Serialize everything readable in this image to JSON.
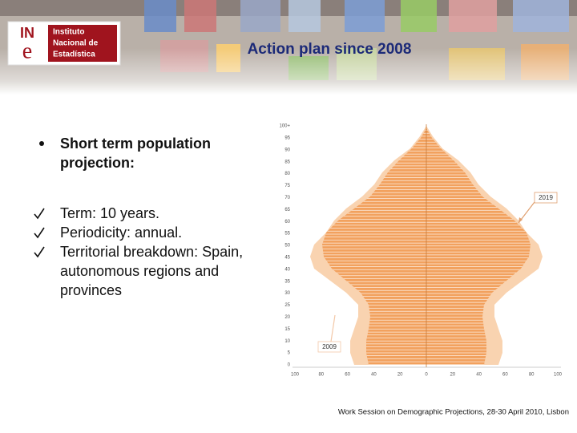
{
  "header": {
    "title": "Action plan since 2008",
    "logo": {
      "mark_top": "IN",
      "mark_bottom": "e",
      "lines": [
        "Instituto",
        "Nacional de",
        "Estadística"
      ]
    }
  },
  "bullet": {
    "lines": [
      "Short term population",
      "projection:"
    ]
  },
  "checks": [
    {
      "lines": [
        "Term: 10 years."
      ]
    },
    {
      "lines": [
        "Periodicity: annual."
      ]
    },
    {
      "lines": [
        "Territorial breakdown: Spain,",
        "autonomous regions and",
        "provinces"
      ]
    }
  ],
  "pyramid": {
    "age_labels": [
      "100+",
      "95",
      "90",
      "85",
      "80",
      "75",
      "70",
      "65",
      "60",
      "55",
      "50",
      "45",
      "40",
      "35",
      "30",
      "25",
      "20",
      "15",
      "10",
      "5",
      "0"
    ],
    "x_labels": [
      "100",
      "80",
      "60",
      "40",
      "20",
      "0",
      "20",
      "40",
      "60",
      "80",
      "100"
    ],
    "annotations": [
      "2019",
      "2009"
    ]
  },
  "footer": "Work Session on Demographic Projections, 28-30 April 2010, Lisbon"
}
